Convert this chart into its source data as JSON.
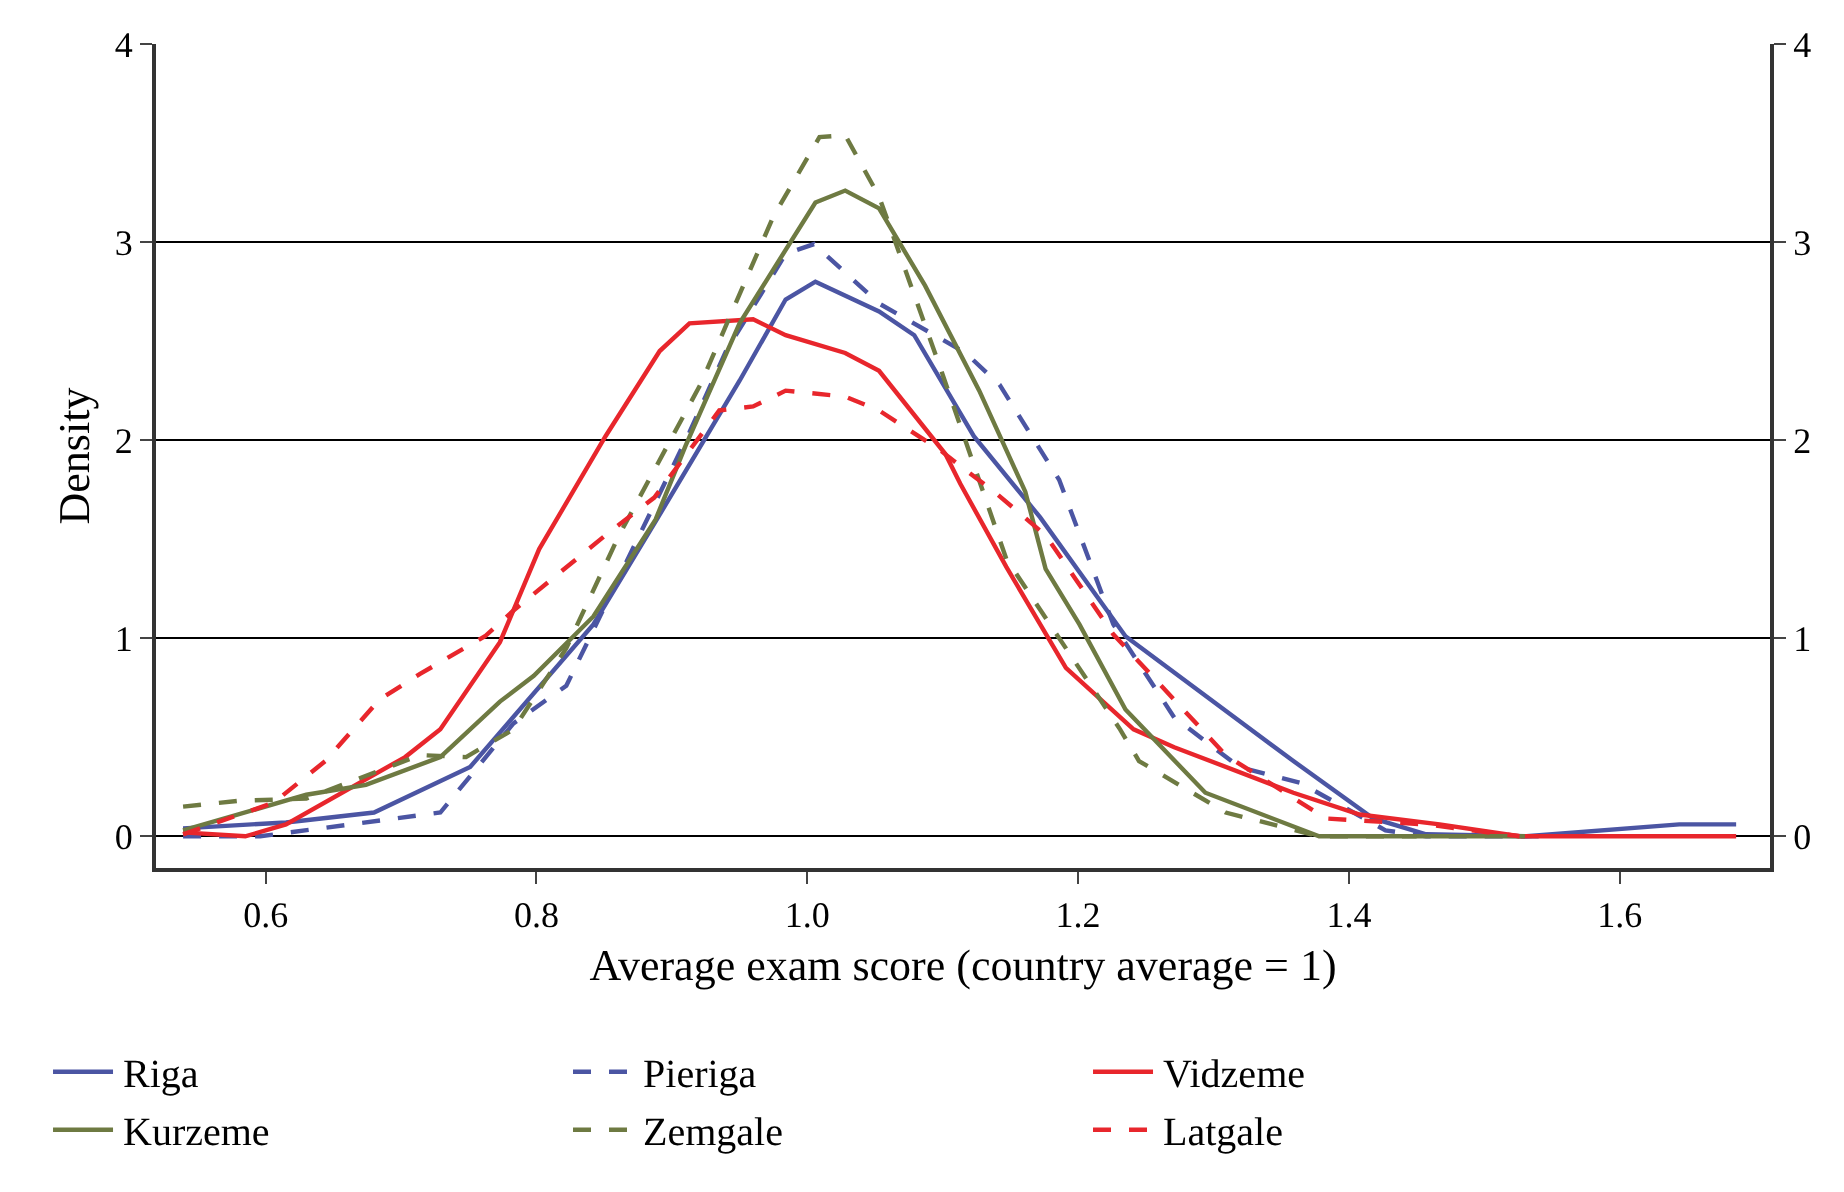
{
  "chart_data": {
    "type": "line",
    "xlabel": "Average exam score (country average = 1)",
    "ylabel": "Density",
    "xlim": [
      0.519,
      1.711
    ],
    "xticks": [
      {
        "value": 0.6,
        "label": "0.6"
      },
      {
        "value": 0.8,
        "label": "0.8"
      },
      {
        "value": 1.0,
        "label": "1.0"
      },
      {
        "value": 1.2,
        "label": "1.2"
      },
      {
        "value": 1.4,
        "label": "1.4"
      },
      {
        "value": 1.6,
        "label": "1.6"
      }
    ],
    "ylim": [
      -0.16,
      4
    ],
    "yticks": [
      0,
      1,
      2,
      3,
      4
    ],
    "y2lim": [
      -0.16,
      4
    ],
    "y2ticks": [
      0,
      1,
      2,
      3,
      4
    ],
    "grid": "y",
    "legend": "bottom",
    "marker": "none",
    "series": [
      {
        "name": "Riga",
        "color": "#4b55a3",
        "line_style": "solid",
        "x": [
          0.539,
          0.615,
          0.68,
          0.751,
          0.842,
          0.888,
          0.95,
          0.984,
          1.006,
          1.053,
          1.079,
          1.123,
          1.172,
          1.235,
          1.359,
          1.418,
          1.457,
          1.531,
          1.644,
          1.686
        ],
        "values": [
          0.04,
          0.07,
          0.12,
          0.35,
          1.07,
          1.59,
          2.3,
          2.71,
          2.8,
          2.65,
          2.53,
          2.02,
          1.61,
          1.01,
          0.38,
          0.09,
          0.01,
          0,
          0.06,
          0.06
        ]
      },
      {
        "name": "Pieriga",
        "color": "#4b55a3",
        "line_style": "dashed",
        "x": [
          0.539,
          0.596,
          0.729,
          0.783,
          0.822,
          0.876,
          0.913,
          0.94,
          0.984,
          1.005,
          1.053,
          1.117,
          1.142,
          1.186,
          1.226,
          1.271,
          1.319,
          1.364,
          1.427,
          1.457,
          1.55
        ],
        "values": [
          0,
          0,
          0.12,
          0.57,
          0.76,
          1.52,
          2.04,
          2.45,
          2.94,
          2.99,
          2.69,
          2.44,
          2.28,
          1.8,
          1.07,
          0.6,
          0.35,
          0.27,
          0.03,
          0,
          0
        ]
      },
      {
        "name": "Vidzeme",
        "color": "#e8262c",
        "line_style": "solid",
        "x": [
          0.539,
          0.585,
          0.615,
          0.703,
          0.729,
          0.773,
          0.802,
          0.851,
          0.891,
          0.913,
          0.96,
          0.984,
          1.028,
          1.053,
          1.102,
          1.113,
          1.147,
          1.191,
          1.241,
          1.271,
          1.359,
          1.408,
          1.467,
          1.526,
          1.686
        ],
        "values": [
          0.02,
          0,
          0.06,
          0.4,
          0.54,
          0.98,
          1.45,
          2.02,
          2.45,
          2.59,
          2.61,
          2.53,
          2.44,
          2.35,
          1.93,
          1.78,
          1.36,
          0.85,
          0.54,
          0.45,
          0.22,
          0.11,
          0.06,
          0,
          0
        ]
      },
      {
        "name": "Kurzeme",
        "color": "#6e7a42",
        "line_style": "solid",
        "x": [
          0.539,
          0.63,
          0.674,
          0.729,
          0.773,
          0.798,
          0.842,
          0.888,
          0.91,
          0.95,
          1.006,
          1.028,
          1.053,
          1.087,
          1.127,
          1.161,
          1.176,
          1.201,
          1.235,
          1.294,
          1.378,
          1.53
        ],
        "values": [
          0.03,
          0.21,
          0.26,
          0.4,
          0.68,
          0.81,
          1.11,
          1.6,
          1.97,
          2.59,
          3.2,
          3.26,
          3.17,
          2.78,
          2.25,
          1.74,
          1.35,
          1.07,
          0.64,
          0.22,
          0,
          0
        ]
      },
      {
        "name": "Zemgale",
        "color": "#6e7a42",
        "line_style": "dashed",
        "x": [
          0.539,
          0.581,
          0.63,
          0.714,
          0.748,
          0.783,
          0.822,
          0.861,
          0.921,
          0.975,
          1.009,
          1.028,
          1.053,
          1.098,
          1.147,
          1.231,
          1.245,
          1.309,
          1.378,
          1.45
        ],
        "values": [
          0.15,
          0.18,
          0.19,
          0.41,
          0.4,
          0.54,
          0.95,
          1.52,
          2.28,
          3.13,
          3.53,
          3.54,
          3.23,
          2.37,
          1.4,
          0.54,
          0.38,
          0.12,
          0,
          0
        ]
      },
      {
        "name": "Latgale",
        "color": "#e8262c",
        "line_style": "dashed",
        "x": [
          0.539,
          0.606,
          0.644,
          0.684,
          0.714,
          0.762,
          0.783,
          0.851,
          0.887,
          0.935,
          0.96,
          0.984,
          1.028,
          1.053,
          1.098,
          1.113,
          1.138,
          1.176,
          1.226,
          1.309,
          1.383,
          1.457,
          1.526
        ],
        "values": [
          0.01,
          0.17,
          0.38,
          0.69,
          0.82,
          1.01,
          1.14,
          1.52,
          1.71,
          2.15,
          2.17,
          2.25,
          2.22,
          2.15,
          1.95,
          1.87,
          1.74,
          1.52,
          1.02,
          0.41,
          0.09,
          0.06,
          0
        ]
      }
    ]
  }
}
